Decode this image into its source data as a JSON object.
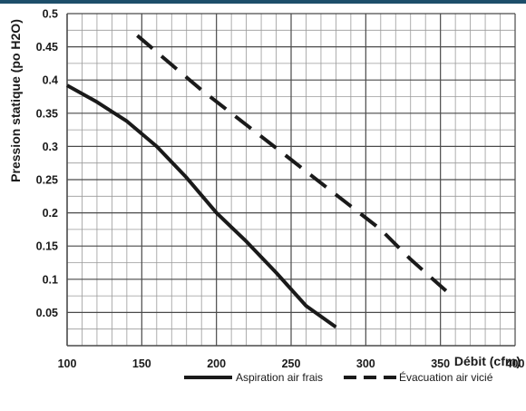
{
  "colors": {
    "top_bar": "#1d4e6a",
    "grid_major": "#4a4a4a",
    "grid_minor": "#9a9a9a",
    "series": "#1a1a1a"
  },
  "chart_data": {
    "type": "line",
    "title": "",
    "xlabel": "Débit (cfm)",
    "ylabel": "Pression statique (po H2O)",
    "xlim": [
      100,
      400
    ],
    "ylim": [
      0,
      0.5
    ],
    "x_ticks": [
      "100",
      "150",
      "200",
      "250",
      "300",
      "350",
      "400"
    ],
    "y_ticks": [
      "0.05",
      "0.1",
      "0.15",
      "0.2",
      "0.25",
      "0.3",
      "0.35",
      "0.4",
      "0.45",
      "0.5"
    ],
    "grid": true,
    "legend_position": "bottom-right",
    "series": [
      {
        "name": "Aspiration air frais",
        "style": "solid",
        "points": [
          [
            100,
            0.392
          ],
          [
            120,
            0.367
          ],
          [
            140,
            0.338
          ],
          [
            160,
            0.3
          ],
          [
            180,
            0.253
          ],
          [
            200,
            0.2
          ],
          [
            220,
            0.157
          ],
          [
            240,
            0.11
          ],
          [
            260,
            0.06
          ],
          [
            280,
            0.028
          ]
        ]
      },
      {
        "name": "Évacuation air vicié",
        "style": "dashed",
        "points": [
          [
            147,
            0.467
          ],
          [
            170,
            0.423
          ],
          [
            190,
            0.385
          ],
          [
            210,
            0.35
          ],
          [
            230,
            0.315
          ],
          [
            250,
            0.28
          ],
          [
            270,
            0.245
          ],
          [
            290,
            0.21
          ],
          [
            310,
            0.175
          ],
          [
            330,
            0.13
          ],
          [
            355,
            0.08
          ]
        ]
      }
    ]
  }
}
